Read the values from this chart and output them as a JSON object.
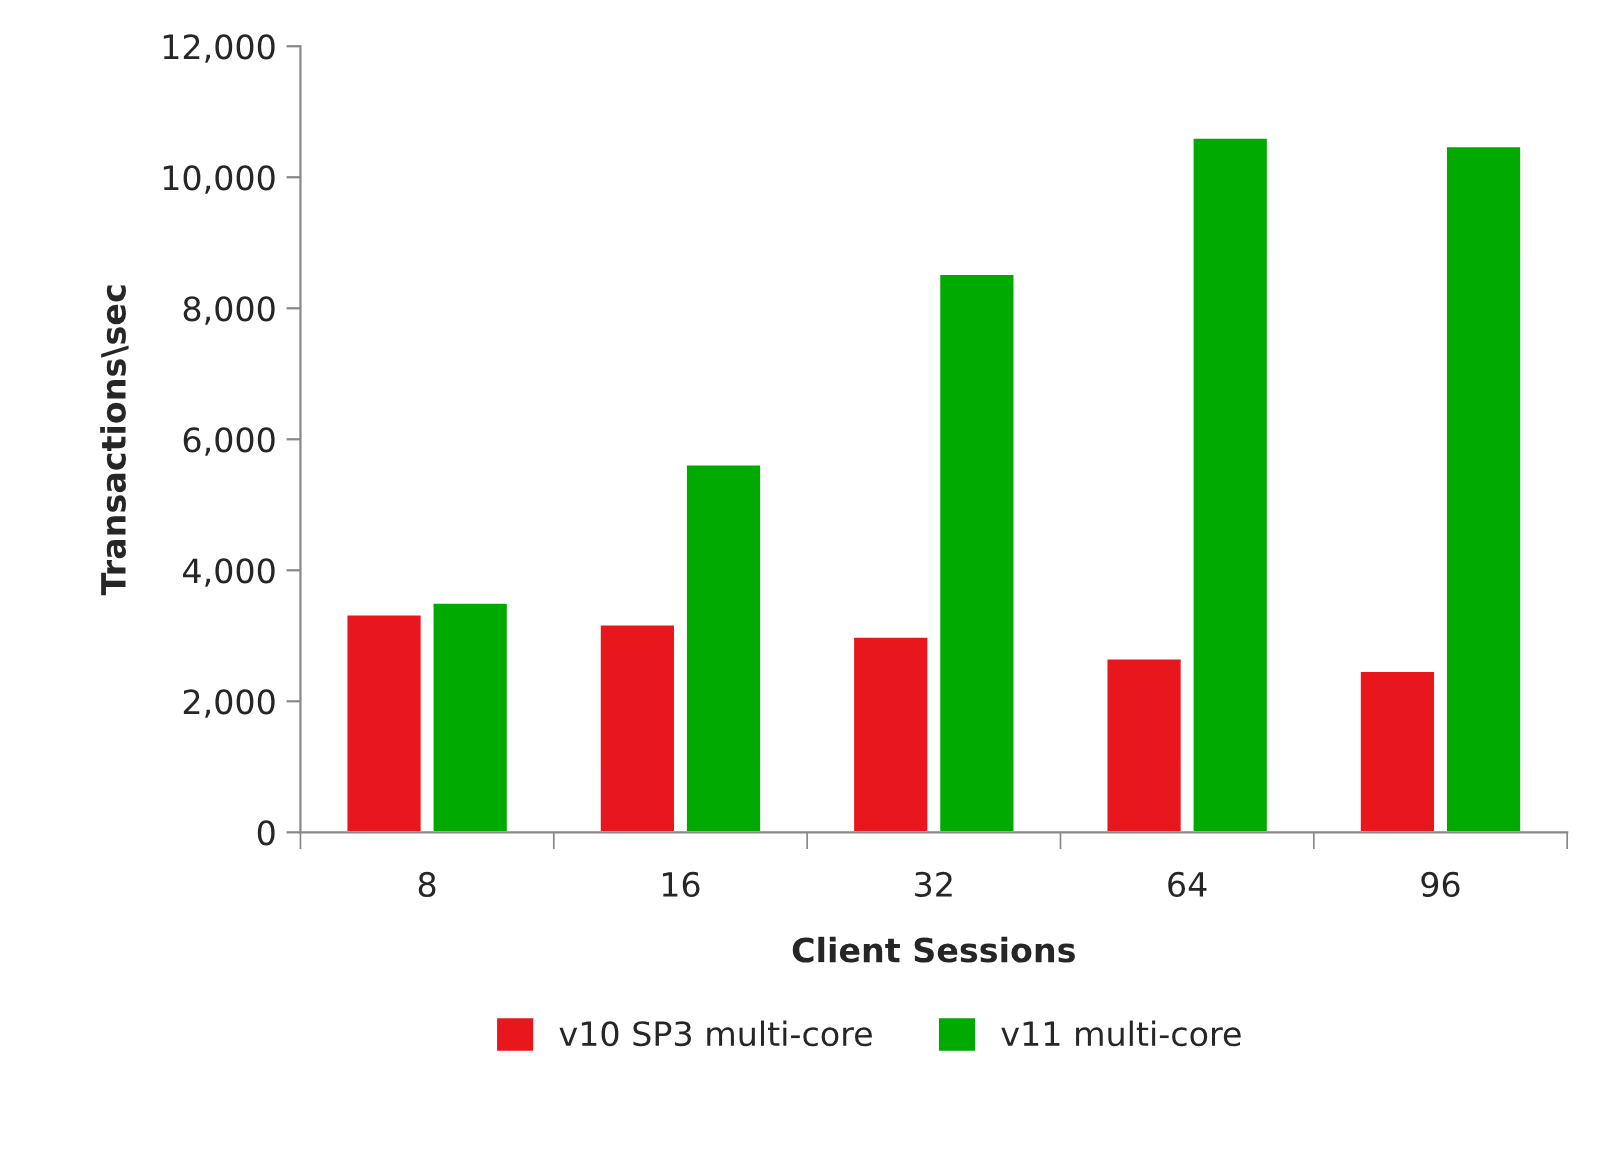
{
  "chart_data": {
    "type": "bar",
    "xlabel": "Client Sessions",
    "ylabel": "Transactions\\sec",
    "categories": [
      "8",
      "16",
      "32",
      "64",
      "96"
    ],
    "series": [
      {
        "name": "v10 SP3 multi-core",
        "color": "#e8171d",
        "values": [
          3330,
          3180,
          2990,
          2660,
          2470
        ]
      },
      {
        "name": "v11 multi-core",
        "color": "#00aa00",
        "values": [
          3510,
          5620,
          8530,
          10610,
          10480
        ]
      }
    ],
    "ylim": [
      0,
      12000
    ],
    "yticks": [
      {
        "value": 0,
        "label": "0"
      },
      {
        "value": 2000,
        "label": "2,000"
      },
      {
        "value": 4000,
        "label": "4,000"
      },
      {
        "value": 6000,
        "label": "6,000"
      },
      {
        "value": 8000,
        "label": "8,000"
      },
      {
        "value": 10000,
        "label": "10,000"
      },
      {
        "value": 12000,
        "label": "12,000"
      }
    ],
    "grid": false,
    "legend": "bottom"
  }
}
